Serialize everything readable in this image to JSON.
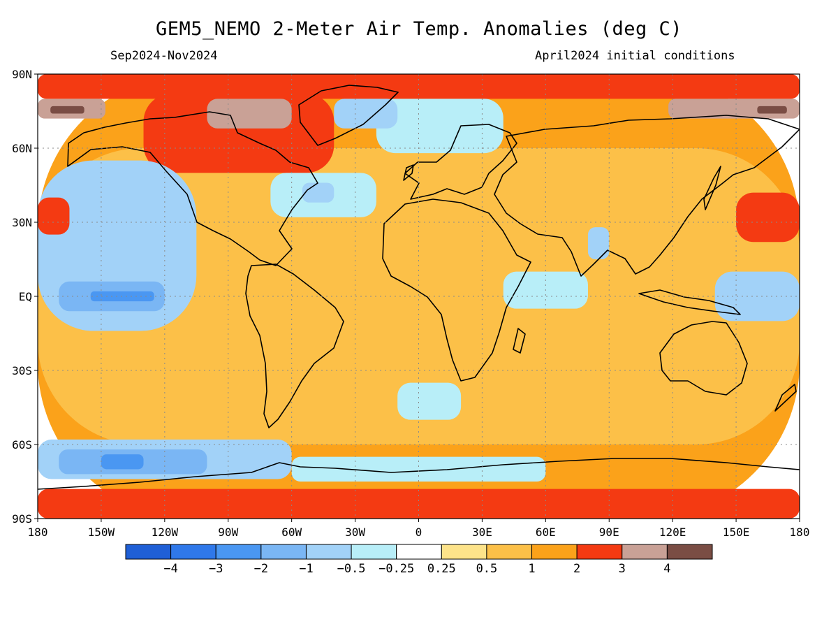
{
  "title": "GEM5_NEMO 2-Meter Air Temp. Anomalies (deg C)",
  "subtitle_left": "Sep2024-Nov2024",
  "subtitle_right": "April2024 initial conditions",
  "lat_ticks": [
    "90N",
    "60N",
    "30N",
    "EQ",
    "30S",
    "60S",
    "90S"
  ],
  "lon_ticks": [
    "180",
    "150W",
    "120W",
    "90W",
    "60W",
    "30W",
    "0",
    "30E",
    "60E",
    "90E",
    "120E",
    "150E",
    "180"
  ],
  "colorbar": {
    "colors": [
      "#1f5fd6",
      "#2f78ea",
      "#4a97f2",
      "#7ab6f4",
      "#a2d2f8",
      "#b8eef8",
      "#ffffff",
      "#fde38a",
      "#fcc048",
      "#fba21a",
      "#f43a12",
      "#c9a196",
      "#7a4d44"
    ],
    "labels": [
      "−4",
      "−3",
      "−2",
      "−1",
      "−0.5",
      "−0.25",
      "0.25",
      "0.5",
      "1",
      "2",
      "3",
      "4"
    ]
  },
  "anomaly_regions": [
    {
      "level": "1",
      "lon": [
        -180,
        180
      ],
      "lat": [
        -90,
        90
      ]
    },
    {
      "level": "0.5",
      "lon": [
        -180,
        180
      ],
      "lat": [
        -60,
        60
      ]
    },
    {
      "level": "2",
      "lon": [
        -180,
        180
      ],
      "lat": [
        80,
        90
      ]
    },
    {
      "level": "2",
      "lon": [
        -180,
        180
      ],
      "lat": [
        -90,
        -78
      ]
    },
    {
      "level": "2",
      "lon": [
        -130,
        -40
      ],
      "lat": [
        50,
        82
      ]
    },
    {
      "level": "3",
      "lon": [
        -180,
        -148
      ],
      "lat": [
        72,
        80
      ]
    },
    {
      "level": "4",
      "lon": [
        -174,
        -158
      ],
      "lat": [
        74,
        77
      ]
    },
    {
      "level": "3",
      "lon": [
        118,
        180
      ],
      "lat": [
        72,
        80
      ]
    },
    {
      "level": "4",
      "lon": [
        160,
        174
      ],
      "lat": [
        74,
        77
      ]
    },
    {
      "level": "3",
      "lon": [
        -100,
        -60
      ],
      "lat": [
        68,
        80
      ]
    },
    {
      "level": "-0.25",
      "lon": [
        -20,
        40
      ],
      "lat": [
        58,
        80
      ]
    },
    {
      "level": "-0.5",
      "lon": [
        -40,
        -10
      ],
      "lat": [
        68,
        80
      ]
    },
    {
      "level": "-0.5",
      "lon": [
        -180,
        -105
      ],
      "lat": [
        -14,
        55
      ]
    },
    {
      "level": "-1",
      "lon": [
        -170,
        -120
      ],
      "lat": [
        -6,
        6
      ]
    },
    {
      "level": "-2",
      "lon": [
        -155,
        -125
      ],
      "lat": [
        -2,
        2
      ]
    },
    {
      "level": "-0.5",
      "lon": [
        -180,
        -60
      ],
      "lat": [
        -74,
        -58
      ]
    },
    {
      "level": "-1",
      "lon": [
        -170,
        -100
      ],
      "lat": [
        -72,
        -62
      ]
    },
    {
      "level": "-2",
      "lon": [
        -150,
        -130
      ],
      "lat": [
        -70,
        -64
      ]
    },
    {
      "level": "-0.25",
      "lon": [
        -60,
        60
      ],
      "lat": [
        -75,
        -65
      ]
    },
    {
      "level": "-0.5",
      "lon": [
        140,
        180
      ],
      "lat": [
        -10,
        10
      ]
    },
    {
      "level": "-0.25",
      "lon": [
        -70,
        -20
      ],
      "lat": [
        32,
        50
      ]
    },
    {
      "level": "-0.5",
      "lon": [
        -55,
        -40
      ],
      "lat": [
        38,
        46
      ]
    },
    {
      "level": "-0.5",
      "lon": [
        80,
        90
      ],
      "lat": [
        15,
        28
      ]
    },
    {
      "level": "2",
      "lon": [
        150,
        180
      ],
      "lat": [
        22,
        42
      ]
    },
    {
      "level": "2",
      "lon": [
        -180,
        -165
      ],
      "lat": [
        25,
        40
      ]
    },
    {
      "level": "-0.25",
      "lon": [
        -10,
        20
      ],
      "lat": [
        -50,
        -35
      ]
    },
    {
      "level": "-0.25",
      "lon": [
        40,
        80
      ],
      "lat": [
        -5,
        10
      ]
    }
  ]
}
